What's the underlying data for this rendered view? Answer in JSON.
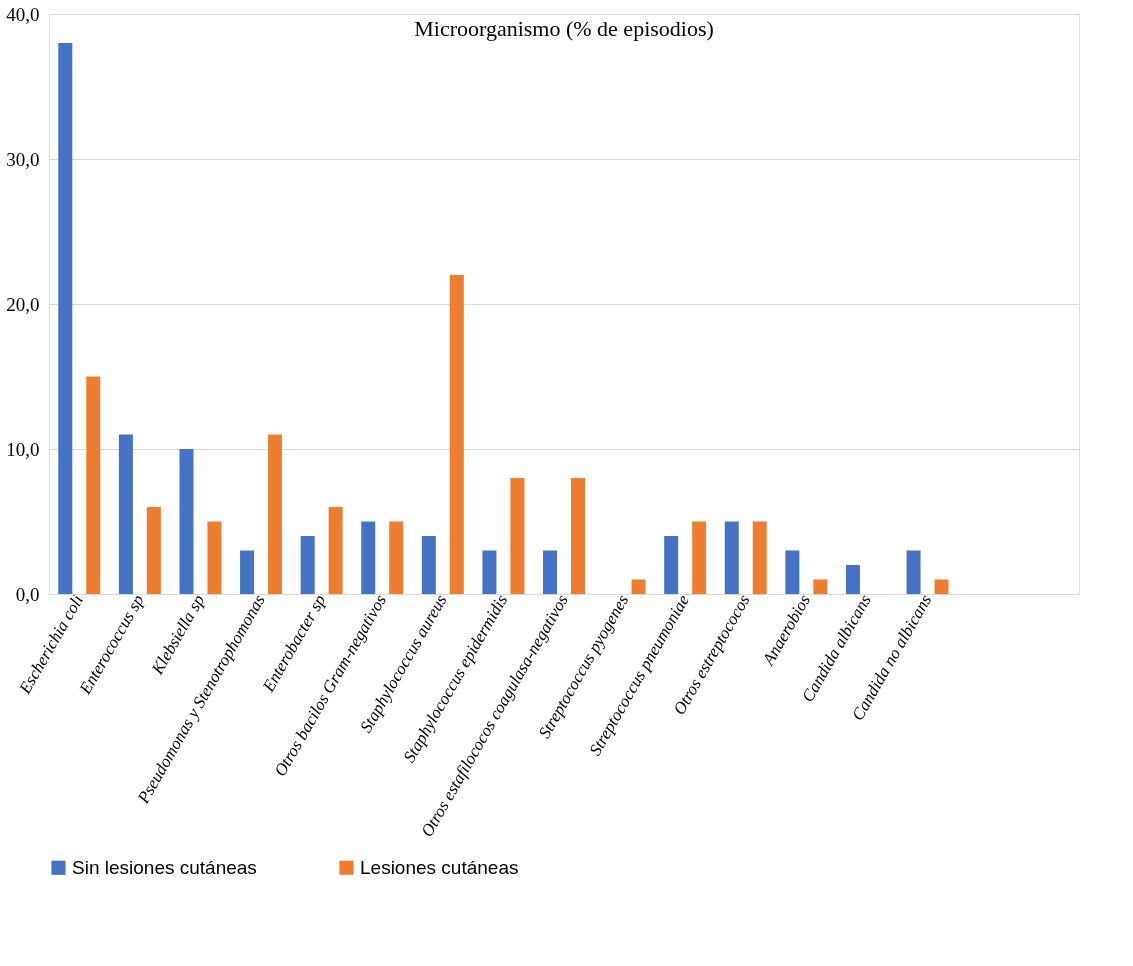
{
  "chart_data": {
    "type": "bar",
    "title": "Microorganismo (% de episodios)",
    "categories": [
      "Escherichia coli",
      "Enterococcus sp",
      "Klebsiella sp",
      "Pseudomonas y Stenotrophomonas",
      "Enterobacter sp",
      "Otros bacilos Gram-negativos",
      "Staphylococcus aureus",
      "Staphylococcus epidermidis",
      "Otros estafilococos coagulasa-negativos",
      "Streptococcus pyogenes",
      "Streptococcus pneumoniae",
      "Otros estreptococos",
      "Anaerobios",
      "Candida albicans",
      "Candida no albicans",
      null,
      null
    ],
    "series": [
      {
        "name": "Sin lesiones cutáneas",
        "color": "#4472c4",
        "values": [
          38,
          11,
          10,
          3,
          4,
          5,
          4,
          3,
          3,
          null,
          4,
          5,
          3,
          2,
          3,
          null,
          null
        ]
      },
      {
        "name": "Lesiones cutáneas",
        "color": "#ed7d31",
        "values": [
          15,
          6,
          5,
          11,
          6,
          5,
          22,
          8,
          8,
          1,
          5,
          5,
          1,
          null,
          1,
          null,
          null
        ]
      }
    ],
    "ylim": [
      0,
      40
    ],
    "yticks": [
      {
        "value": 0,
        "label": "0,0"
      },
      {
        "value": 10,
        "label": "10,0"
      },
      {
        "value": 20,
        "label": "20,0"
      },
      {
        "value": 30,
        "label": "30,0"
      },
      {
        "value": 40,
        "label": "40,0"
      }
    ],
    "grid": "y",
    "legend": "bottom"
  }
}
